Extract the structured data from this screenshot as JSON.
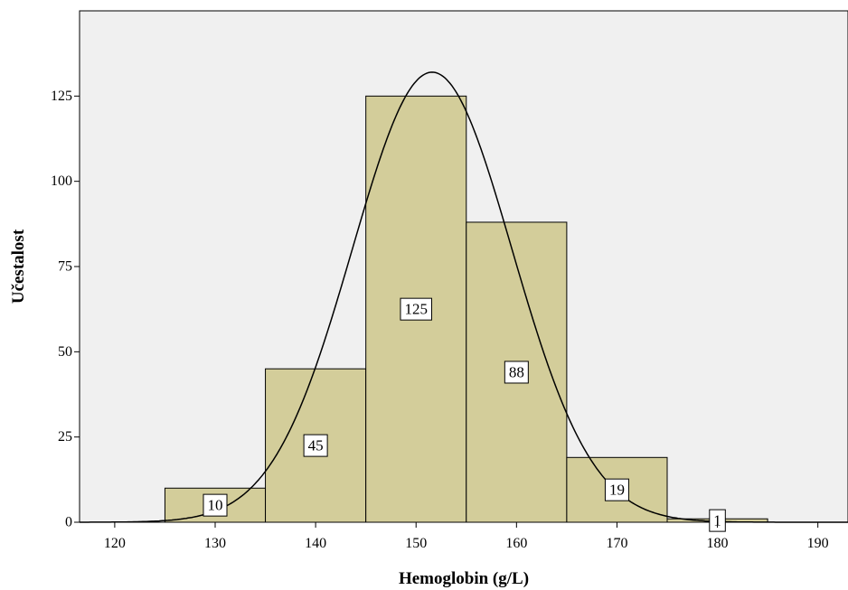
{
  "chart_data": {
    "type": "bar",
    "subtype": "histogram",
    "xlabel": "Hemoglobin (g/L)",
    "ylabel": "Učestalost",
    "xlim": [
      116.5,
      193
    ],
    "ylim": [
      0,
      150
    ],
    "xticks": [
      120,
      130,
      140,
      150,
      160,
      170,
      180,
      190
    ],
    "yticks": [
      0,
      25,
      50,
      75,
      100,
      125
    ],
    "bins": [
      {
        "start": 125,
        "end": 135,
        "value": 10,
        "label": "10"
      },
      {
        "start": 135,
        "end": 145,
        "value": 45,
        "label": "45"
      },
      {
        "start": 145,
        "end": 155,
        "value": 125,
        "label": "125"
      },
      {
        "start": 155,
        "end": 165,
        "value": 88,
        "label": "88"
      },
      {
        "start": 165,
        "end": 175,
        "value": 19,
        "label": "19"
      },
      {
        "start": 175,
        "end": 185,
        "value": 1,
        "label": "1"
      }
    ],
    "normal_curve": {
      "mean": 151.6,
      "sd": 7.95,
      "peak": 132
    },
    "grid": false,
    "legend": "none",
    "colors": {
      "bar_fill": "#d3cd9a",
      "plot_background": "#f0f0f0",
      "curve": "#000000"
    }
  }
}
